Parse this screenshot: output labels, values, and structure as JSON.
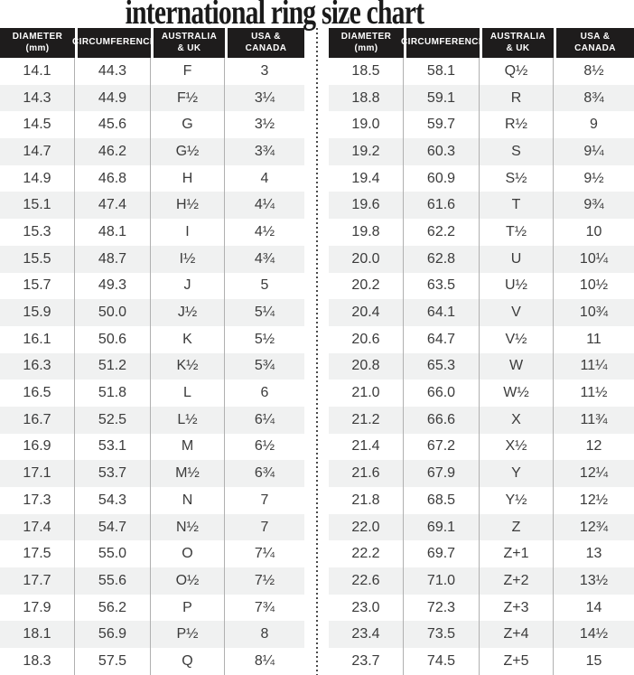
{
  "chart_data": {
    "type": "table",
    "title": "international ring size chart",
    "columns": [
      {
        "key": "diameter-mm",
        "label": "DIAMETER\n(mm)"
      },
      {
        "key": "circumference",
        "label": "CIRCUMFERENCE"
      },
      {
        "key": "australia-uk",
        "label": "AUSTRALIA\n& UK"
      },
      {
        "key": "usa-canada",
        "label": "USA &\nCANADA"
      }
    ],
    "tables": [
      {
        "side": "left",
        "rows": [
          [
            "14.1",
            "44.3",
            "F",
            "3"
          ],
          [
            "14.3",
            "44.9",
            "F½",
            "3¼"
          ],
          [
            "14.5",
            "45.6",
            "G",
            "3½"
          ],
          [
            "14.7",
            "46.2",
            "G½",
            "3¾"
          ],
          [
            "14.9",
            "46.8",
            "H",
            "4"
          ],
          [
            "15.1",
            "47.4",
            "H½",
            "4¼"
          ],
          [
            "15.3",
            "48.1",
            "I",
            "4½"
          ],
          [
            "15.5",
            "48.7",
            "I½",
            "4¾"
          ],
          [
            "15.7",
            "49.3",
            "J",
            "5"
          ],
          [
            "15.9",
            "50.0",
            "J½",
            "5¼"
          ],
          [
            "16.1",
            "50.6",
            "K",
            "5½"
          ],
          [
            "16.3",
            "51.2",
            "K½",
            "5¾"
          ],
          [
            "16.5",
            "51.8",
            "L",
            "6"
          ],
          [
            "16.7",
            "52.5",
            "L½",
            "6¼"
          ],
          [
            "16.9",
            "53.1",
            "M",
            "6½"
          ],
          [
            "17.1",
            "53.7",
            "M½",
            "6¾"
          ],
          [
            "17.3",
            "54.3",
            "N",
            "7"
          ],
          [
            "17.4",
            "54.7",
            "N½",
            "7"
          ],
          [
            "17.5",
            "55.0",
            "O",
            "7¼"
          ],
          [
            "17.7",
            "55.6",
            "O½",
            "7½"
          ],
          [
            "17.9",
            "56.2",
            "P",
            "7¾"
          ],
          [
            "18.1",
            "56.9",
            "P½",
            "8"
          ],
          [
            "18.3",
            "57.5",
            "Q",
            "8¼"
          ]
        ]
      },
      {
        "side": "right",
        "rows": [
          [
            "18.5",
            "58.1",
            "Q½",
            "8½"
          ],
          [
            "18.8",
            "59.1",
            "R",
            "8¾"
          ],
          [
            "19.0",
            "59.7",
            "R½",
            "9"
          ],
          [
            "19.2",
            "60.3",
            "S",
            "9¼"
          ],
          [
            "19.4",
            "60.9",
            "S½",
            "9½"
          ],
          [
            "19.6",
            "61.6",
            "T",
            "9¾"
          ],
          [
            "19.8",
            "62.2",
            "T½",
            "10"
          ],
          [
            "20.0",
            "62.8",
            "U",
            "10¼"
          ],
          [
            "20.2",
            "63.5",
            "U½",
            "10½"
          ],
          [
            "20.4",
            "64.1",
            "V",
            "10¾"
          ],
          [
            "20.6",
            "64.7",
            "V½",
            "11"
          ],
          [
            "20.8",
            "65.3",
            "W",
            "11¼"
          ],
          [
            "21.0",
            "66.0",
            "W½",
            "11½"
          ],
          [
            "21.2",
            "66.6",
            "X",
            "11¾"
          ],
          [
            "21.4",
            "67.2",
            "X½",
            "12"
          ],
          [
            "21.6",
            "67.9",
            "Y",
            "12¼"
          ],
          [
            "21.8",
            "68.5",
            "Y½",
            "12½"
          ],
          [
            "22.0",
            "69.1",
            "Z",
            "12¾"
          ],
          [
            "22.2",
            "69.7",
            "Z+1",
            "13"
          ],
          [
            "22.6",
            "71.0",
            "Z+2",
            "13½"
          ],
          [
            "23.0",
            "72.3",
            "Z+3",
            "14"
          ],
          [
            "23.4",
            "73.5",
            "Z+4",
            "14½"
          ],
          [
            "23.7",
            "74.5",
            "Z+5",
            "15"
          ]
        ]
      }
    ],
    "style": {
      "header_bg": "#1e1c1c",
      "header_text": "#ffffff",
      "row_alt": "#f0f1f1",
      "cell_text": "#3b3b3b",
      "separator": "#b0b0b0",
      "divider": "#4a4a4a",
      "title_color": "#1a1a1a"
    }
  }
}
